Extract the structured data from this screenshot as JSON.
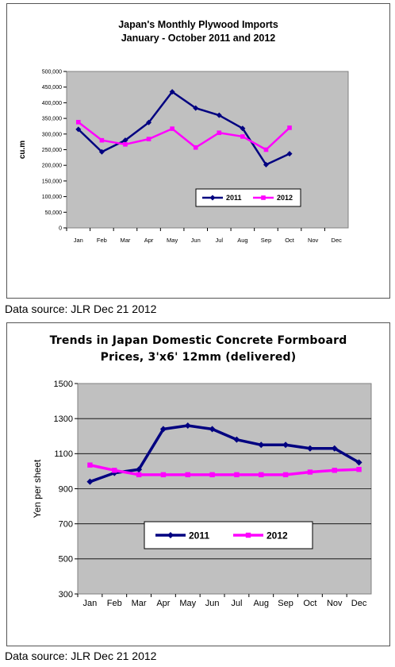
{
  "chart_data": [
    {
      "type": "line",
      "title": "Japan's Monthly Plywood Imports",
      "subtitle": "January - October  2011 and 2012",
      "ylabel": "cu.m",
      "xlabel": "",
      "categories": [
        "Jan",
        "Feb",
        "Mar",
        "Apr",
        "May",
        "Jun",
        "Jul",
        "Aug",
        "Sep",
        "Oct",
        "Nov",
        "Dec"
      ],
      "yticks": [
        "0",
        "50,000",
        "100,000",
        "150,000",
        "200,000",
        "250,000",
        "300,000",
        "350,000",
        "400,000",
        "450,000",
        "500,000"
      ],
      "ylim": [
        0,
        500000
      ],
      "grid": false,
      "legend": "center-right",
      "series": [
        {
          "name": "2011",
          "color": "#000080",
          "values": [
            315000,
            243000,
            280000,
            337000,
            435000,
            383000,
            360000,
            318000,
            202000,
            237000,
            null,
            null
          ]
        },
        {
          "name": "2012",
          "color": "#ff00ff",
          "values": [
            338000,
            280000,
            267000,
            284000,
            317000,
            257000,
            304000,
            292000,
            250000,
            320000,
            null,
            null
          ]
        }
      ]
    },
    {
      "type": "line",
      "title": "Trends in Japan Domestic Concrete Formboard",
      "subtitle": "Prices, 3'x6' 12mm (delivered)",
      "ylabel": "Yen per sheet",
      "xlabel": "",
      "categories": [
        "Jan",
        "Feb",
        "Mar",
        "Apr",
        "May",
        "Jun",
        "Jul",
        "Aug",
        "Sep",
        "Oct",
        "Nov",
        "Dec"
      ],
      "yticks": [
        "300",
        "500",
        "700",
        "900",
        "1100",
        "1300",
        "1500"
      ],
      "ylim": [
        300,
        1500
      ],
      "grid": true,
      "legend": "bottom-center",
      "series": [
        {
          "name": "2011",
          "color": "#000080",
          "values": [
            940,
            990,
            1010,
            1240,
            1260,
            1240,
            1180,
            1150,
            1150,
            1130,
            1130,
            1050
          ]
        },
        {
          "name": "2012",
          "color": "#ff00ff",
          "values": [
            1035,
            1005,
            980,
            980,
            980,
            980,
            980,
            980,
            980,
            995,
            1005,
            1010
          ]
        }
      ]
    }
  ],
  "sources": [
    "Data source: JLR Dec 21 2012",
    "Data source: JLR Dec 21 2012"
  ]
}
